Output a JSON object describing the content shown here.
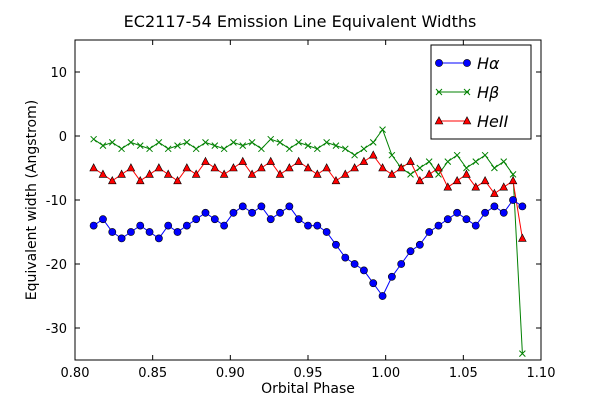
{
  "chart_data": {
    "type": "line",
    "title": "EC2117-54 Emission Line Equivalent Widths",
    "xlabel": "Orbital Phase",
    "ylabel": "Equivalent width (Angstrom)",
    "xlim": [
      0.8,
      1.1
    ],
    "ylim": [
      -35,
      15
    ],
    "xticks": [
      0.8,
      0.85,
      0.9,
      0.95,
      1.0,
      1.05,
      1.1
    ],
    "xtick_labels": [
      "0.80",
      "0.85",
      "0.90",
      "0.95",
      "1.00",
      "1.05",
      "1.10"
    ],
    "yticks": [
      -30,
      -20,
      -10,
      0,
      10
    ],
    "ytick_labels": [
      "-30",
      "-20",
      "-10",
      "0",
      "10"
    ],
    "grid": false,
    "legend_position": "top-right",
    "series": [
      {
        "name": "Hα",
        "color": "#0000ff",
        "marker": "circle",
        "x": [
          0.812,
          0.818,
          0.824,
          0.83,
          0.836,
          0.842,
          0.848,
          0.854,
          0.86,
          0.866,
          0.872,
          0.878,
          0.884,
          0.89,
          0.896,
          0.902,
          0.908,
          0.914,
          0.92,
          0.926,
          0.932,
          0.938,
          0.944,
          0.95,
          0.956,
          0.962,
          0.968,
          0.974,
          0.98,
          0.986,
          0.992,
          0.998,
          1.004,
          1.01,
          1.016,
          1.022,
          1.028,
          1.034,
          1.04,
          1.046,
          1.052,
          1.058,
          1.064,
          1.07,
          1.076,
          1.082,
          1.088
        ],
        "y": [
          -14,
          -13,
          -15,
          -16,
          -15,
          -14,
          -15,
          -16,
          -14,
          -15,
          -14,
          -13,
          -12,
          -13,
          -14,
          -12,
          -11,
          -12,
          -11,
          -13,
          -12,
          -11,
          -13,
          -14,
          -14,
          -15,
          -17,
          -19,
          -20,
          -21,
          -23,
          -25,
          -22,
          -20,
          -18,
          -17,
          -15,
          -14,
          -13,
          -12,
          -13,
          -14,
          -12,
          -11,
          -12,
          -10,
          -11
        ]
      },
      {
        "name": "Hβ",
        "color": "#008000",
        "marker": "x",
        "x": [
          0.812,
          0.818,
          0.824,
          0.83,
          0.836,
          0.842,
          0.848,
          0.854,
          0.86,
          0.866,
          0.872,
          0.878,
          0.884,
          0.89,
          0.896,
          0.902,
          0.908,
          0.914,
          0.92,
          0.926,
          0.932,
          0.938,
          0.944,
          0.95,
          0.956,
          0.962,
          0.968,
          0.974,
          0.98,
          0.986,
          0.992,
          0.998,
          1.004,
          1.01,
          1.016,
          1.022,
          1.028,
          1.034,
          1.04,
          1.046,
          1.052,
          1.058,
          1.064,
          1.07,
          1.076,
          1.082,
          1.088
        ],
        "y": [
          -0.5,
          -1.5,
          -1,
          -2,
          -1,
          -1.5,
          -2,
          -1,
          -2,
          -1.5,
          -1,
          -2,
          -1,
          -1.5,
          -2,
          -1,
          -1.5,
          -1,
          -2,
          -0.5,
          -1,
          -2,
          -1,
          -1.5,
          -2,
          -1,
          -1.5,
          -2,
          -3,
          -2,
          -1,
          1,
          -3,
          -5,
          -6,
          -5,
          -4,
          -6,
          -4,
          -3,
          -5,
          -4,
          -3,
          -5,
          -4,
          -6,
          -34
        ]
      },
      {
        "name": "HeII",
        "color": "#ff0000",
        "marker": "triangle",
        "x": [
          0.812,
          0.818,
          0.824,
          0.83,
          0.836,
          0.842,
          0.848,
          0.854,
          0.86,
          0.866,
          0.872,
          0.878,
          0.884,
          0.89,
          0.896,
          0.902,
          0.908,
          0.914,
          0.92,
          0.926,
          0.932,
          0.938,
          0.944,
          0.95,
          0.956,
          0.962,
          0.968,
          0.974,
          0.98,
          0.986,
          0.992,
          0.998,
          1.004,
          1.01,
          1.016,
          1.022,
          1.028,
          1.034,
          1.04,
          1.046,
          1.052,
          1.058,
          1.064,
          1.07,
          1.076,
          1.082,
          1.088
        ],
        "y": [
          -5,
          -6,
          -7,
          -6,
          -5,
          -7,
          -6,
          -5,
          -6,
          -7,
          -5,
          -6,
          -4,
          -5,
          -6,
          -5,
          -4,
          -6,
          -5,
          -4,
          -6,
          -5,
          -4,
          -5,
          -6,
          -5,
          -7,
          -6,
          -5,
          -4,
          -3,
          -5,
          -6,
          -5,
          -4,
          -7,
          -6,
          -5,
          -8,
          -7,
          -6,
          -8,
          -7,
          -9,
          -8,
          -7,
          -16
        ]
      }
    ]
  }
}
